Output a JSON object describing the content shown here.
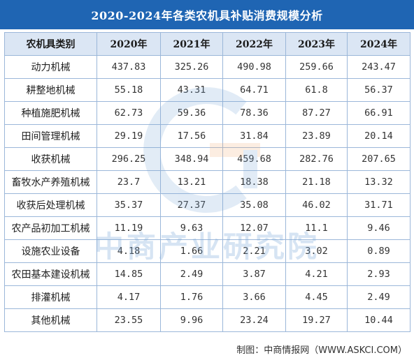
{
  "title": "2020-2024年各类农机具补贴消费规模分析",
  "table": {
    "headers": [
      "农机具类别",
      "2020年",
      "2021年",
      "2022年",
      "2023年",
      "2024年"
    ],
    "rows": [
      {
        "category": "动力机械",
        "values": [
          "437.83",
          "325.26",
          "490.98",
          "259.66",
          "243.47"
        ]
      },
      {
        "category": "耕整地机械",
        "values": [
          "55.18",
          "43.31",
          "64.71",
          "61.8",
          "56.37"
        ]
      },
      {
        "category": "种植施肥机械",
        "values": [
          "62.73",
          "59.36",
          "78.36",
          "87.27",
          "66.91"
        ]
      },
      {
        "category": "田间管理机械",
        "values": [
          "29.19",
          "17.56",
          "31.84",
          "23.89",
          "20.14"
        ]
      },
      {
        "category": "收获机械",
        "values": [
          "296.25",
          "348.94",
          "459.68",
          "282.76",
          "207.65"
        ]
      },
      {
        "category": "畜牧水产养殖机械",
        "values": [
          "23.7",
          "13.21",
          "18.38",
          "21.18",
          "13.32"
        ]
      },
      {
        "category": "收获后处理机械",
        "values": [
          "35.37",
          "27.37",
          "35.08",
          "46.02",
          "31.71"
        ]
      },
      {
        "category": "农产品初加工机械",
        "values": [
          "11.19",
          "9.63",
          "12.07",
          "11.1",
          "9.46"
        ]
      },
      {
        "category": "设施农业设备",
        "values": [
          "4.18",
          "1.66",
          "2.21",
          "3.02",
          "0.89"
        ]
      },
      {
        "category": "农田基本建设机械",
        "values": [
          "14.85",
          "2.49",
          "3.87",
          "4.21",
          "2.93"
        ]
      },
      {
        "category": "排灌机械",
        "values": [
          "4.17",
          "1.76",
          "3.66",
          "4.45",
          "2.49"
        ]
      },
      {
        "category": "其他机械",
        "values": [
          "23.55",
          "9.96",
          "23.24",
          "19.27",
          "10.44"
        ]
      }
    ]
  },
  "watermark": {
    "text": "中商产业研究院"
  },
  "footer": "制图：中商情报网（WWW.ASKCI.COM）",
  "colors": {
    "title_bg": "#1f65b3",
    "header_bg": "#dbe6f4",
    "border": "#9bb7d9"
  }
}
